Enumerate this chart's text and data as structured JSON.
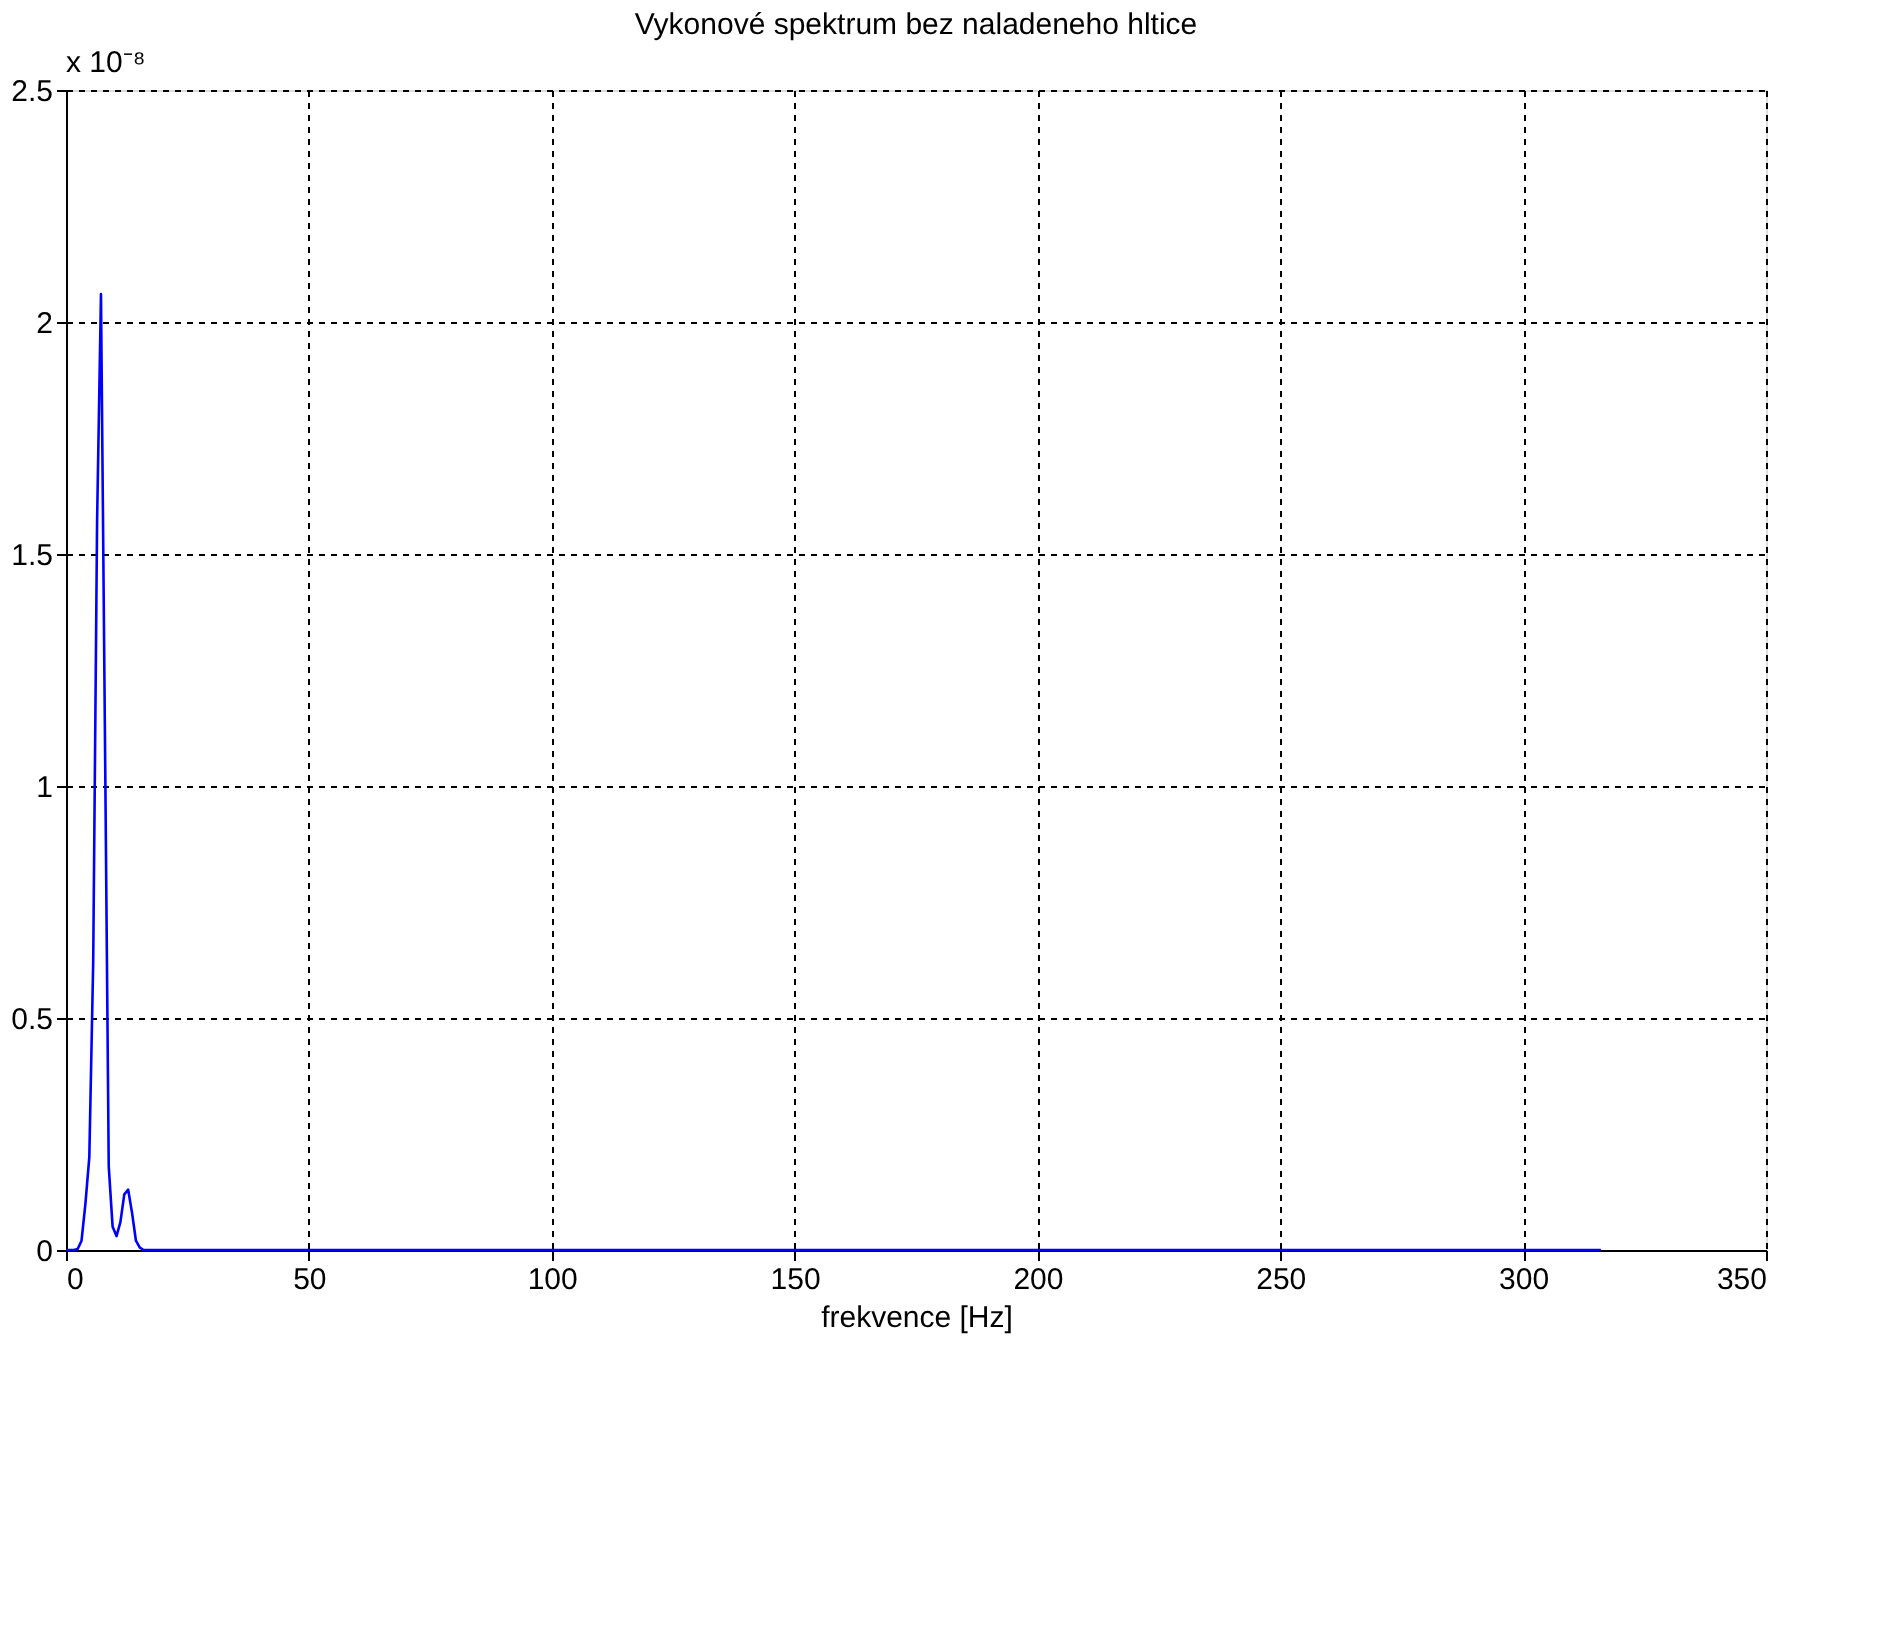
{
  "chart_data": {
    "type": "line",
    "title": "Vykonové spektrum bez naladeneho hltice",
    "xlabel": "frekvence [Hz]",
    "annotations": [
      "x 10⁻⁸"
    ],
    "x": [
      0,
      0.8,
      1.6,
      2.4,
      3.2,
      4.0,
      4.8,
      5.6,
      6.4,
      7.2,
      8.0,
      8.8,
      9.6,
      10.4,
      11.2,
      12.0,
      12.8,
      13.6,
      14.4,
      15.2,
      16.0,
      20,
      50,
      100,
      150,
      200,
      250,
      300,
      316
    ],
    "series": [
      {
        "color": "#0000ff",
        "values": [
          0,
          0,
          0,
          0.002,
          0.02,
          0.1,
          0.2,
          0.62,
          1.57,
          2.06,
          1.13,
          0.18,
          0.05,
          0.03,
          0.06,
          0.12,
          0.13,
          0.08,
          0.02,
          0.005,
          0,
          0,
          0,
          0,
          0,
          0,
          0,
          0,
          0
        ]
      }
    ],
    "xlim": [
      0,
      350
    ],
    "xticks": [
      0,
      50,
      100,
      150,
      200,
      250,
      300,
      350
    ],
    "ylim": [
      0,
      2.5
    ],
    "yticks": [
      0,
      0.5,
      1,
      1.5,
      2,
      2.5
    ],
    "grid": true,
    "line_style": "solid",
    "marker": "none"
  }
}
